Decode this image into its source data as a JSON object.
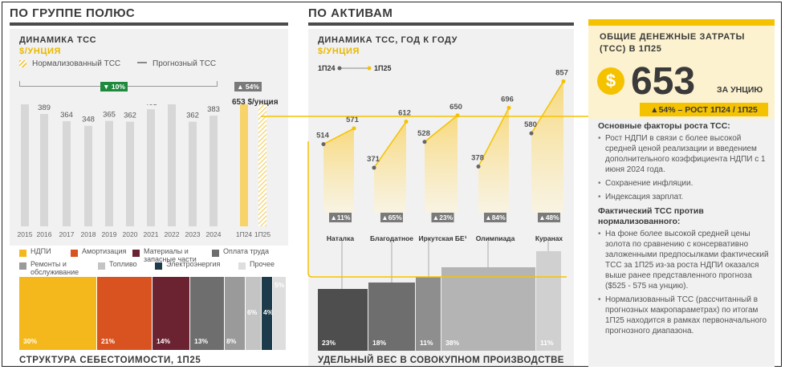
{
  "left": {
    "title": "ПО ГРУППЕ ПОЛЮС",
    "tcs": {
      "heading": "ДИНАМИКА ТСС",
      "unit": "$/УНЦИЯ",
      "legend_normalized": "Нормализованный ТСС",
      "legend_forecast": "Прогнозный ТСС",
      "delta_years": "▼ 10%",
      "delta_period": "▲ 54%",
      "callout": "653 $/унция",
      "forecast_high": "575",
      "forecast_low": "525"
    },
    "cost": {
      "legend": [
        "НДПИ",
        "Амортизация",
        "Материалы и запасные части",
        "Оплата труда",
        "Ремонты и обслуживание",
        "Топливо",
        "Электроэнергия",
        "Прочее"
      ],
      "colors": [
        "#f5b81c",
        "#d8531f",
        "#6b2332",
        "#6e6e6e",
        "#9a9a9a",
        "#c4c4c4",
        "#1d3b4a",
        "#dedede"
      ],
      "labels": [
        "30%",
        "21%",
        "14%",
        "13%",
        "8%",
        "6%",
        "4%",
        "5%"
      ],
      "title": "СТРУКТУРА СЕБЕСТОИМОСТИ, 1П25"
    }
  },
  "mid": {
    "title": "ПО АКТИВАМ",
    "heading": "ДИНАМИКА ТСС, ГОД К ГОДУ",
    "unit": "$/УНЦИЯ",
    "legend_from": "1П24",
    "legend_to": "1П25",
    "prod_title": "УДЕЛЬНЫЙ ВЕС В СОВОКУПНОМ ПРОИЗВОДСТВЕ",
    "prod_labels": [
      "23%",
      "18%",
      "11%",
      "38%",
      "11%"
    ]
  },
  "right": {
    "title": "ОБЩИЕ ДЕНЕЖНЫЕ ЗАТРАТЫ (TCC) В 1П25",
    "currency": "$",
    "value": "653",
    "per": "ЗА УНЦИЮ",
    "growth": "▲54% – РОСТ 1П24 / 1П25",
    "factors_head": "Основные факторы роста ТСС:",
    "factors": [
      "Рост НДПИ в связи с более высокой средней ценой реализации и введением дополнительного коэффициента НДПИ с 1 июня 2024 года.",
      "Сохранение инфляции.",
      "Индексация зарплат."
    ],
    "vs_head": "Фактический ТСС против нормализованного:",
    "vs": [
      "На фоне более высокой средней цены золота по сравнению с консервативно заложенными предпосылками фактический ТСС за 1П25 из-за роста НДПИ оказался выше ранее представленного прогноза ($525 - 575 на унцию).",
      "Нормализованный ТСС (рассчитанный в прогнозных макропараметрах) по итогам 1П25 находится в рамках первоначального прогнозного диапазона."
    ]
  },
  "chart_data": [
    {
      "type": "bar",
      "title": "ДИНАМИКА ТСС",
      "ylabel": "$/унция",
      "categories": [
        "2015",
        "2016",
        "2017",
        "2018",
        "2019",
        "2020",
        "2021",
        "2022",
        "2023",
        "2024",
        "1П24",
        "1П25"
      ],
      "values": [
        424,
        389,
        364,
        348,
        365,
        362,
        405,
        519,
        362,
        383,
        423,
        653
      ],
      "forecast_range_1P25": [
        525,
        575
      ],
      "ylim": [
        0,
        700
      ]
    },
    {
      "type": "line",
      "title": "ДИНАМИКА ТСС, ГОД К ГОДУ",
      "ylabel": "$/унция",
      "categories": [
        "Наталка",
        "Благодатное",
        "Иркутская БЕ¹",
        "Олимпиада",
        "Куранах"
      ],
      "series": [
        {
          "name": "1П24",
          "values": [
            514,
            371,
            528,
            378,
            580
          ]
        },
        {
          "name": "1П25",
          "values": [
            571,
            612,
            650,
            696,
            857
          ]
        }
      ],
      "change": [
        "▲11%",
        "▲65%",
        "▲23%",
        "▲84%",
        "▲48%"
      ],
      "ylim": [
        0,
        900
      ]
    },
    {
      "type": "bar",
      "title": "УДЕЛЬНЫЙ ВЕС В СОВОКУПНОМ ПРОИЗВОДСТВЕ",
      "categories": [
        "Наталка",
        "Благодатное",
        "Иркутская БЕ¹",
        "Олимпиада",
        "Куранах"
      ],
      "values": [
        23,
        18,
        11,
        38,
        11
      ]
    }
  ]
}
